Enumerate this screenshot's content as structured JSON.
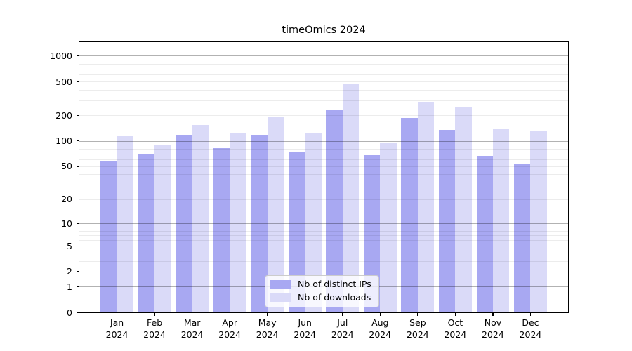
{
  "chart": {
    "title": "timeOmics 2024"
  },
  "chart_data": {
    "type": "bar",
    "title": "timeOmics 2024",
    "yscale": "log10(1+y)",
    "ylim": [
      0,
      1460
    ],
    "grid": true,
    "legend_position": "lower center",
    "year": "2024",
    "categories": [
      "Jan",
      "Feb",
      "Mar",
      "Apr",
      "May",
      "Jun",
      "Jul",
      "Aug",
      "Sep",
      "Oct",
      "Nov",
      "Dec"
    ],
    "yticks": [
      0,
      1,
      2,
      5,
      10,
      20,
      50,
      100,
      200,
      500,
      1000
    ],
    "major_gridlines": [
      1,
      10,
      100,
      1000
    ],
    "minor_gridlines": [
      2,
      3,
      4,
      5,
      6,
      7,
      8,
      9,
      20,
      30,
      40,
      50,
      60,
      70,
      80,
      90,
      200,
      300,
      400,
      500,
      600,
      700,
      800,
      900
    ],
    "series": [
      {
        "name": "Nb of distinct IPs",
        "color": "#a8a8f2",
        "values": [
          58,
          70,
          117,
          82,
          116,
          75,
          230,
          68,
          186,
          135,
          67,
          54
        ]
      },
      {
        "name": "Nb of downloads",
        "color": "#dadaf8",
        "values": [
          113,
          90,
          155,
          123,
          190,
          124,
          470,
          95,
          283,
          252,
          138,
          133
        ]
      }
    ]
  },
  "colors": {
    "bar_distinct_ips": "#a8a8f2",
    "bar_downloads": "#dadaf8",
    "axis": "#000000",
    "major_grid": "#b3b3b3",
    "minor_grid": "#ececec",
    "legend_border": "#cccccc",
    "text": "#000000"
  }
}
